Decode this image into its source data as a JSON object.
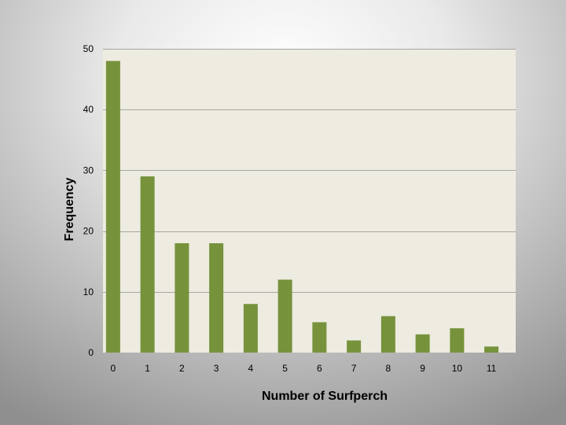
{
  "chart_data": {
    "type": "bar",
    "title": "",
    "xlabel": "Number of Surfperch",
    "ylabel": "Frequency",
    "categories": [
      "0",
      "1",
      "2",
      "3",
      "4",
      "5",
      "6",
      "7",
      "8",
      "9",
      "10",
      "11"
    ],
    "values": [
      48,
      29,
      18,
      18,
      8,
      12,
      5,
      2,
      6,
      3,
      4,
      1
    ],
    "ylim": [
      0,
      50
    ],
    "yticks": [
      0,
      10,
      20,
      30,
      40,
      50
    ],
    "grid": true,
    "legend": "none",
    "colors": {
      "bar": "#76933c",
      "plot_background": "#eeebe0",
      "gridline": "#a6a6a6"
    }
  }
}
